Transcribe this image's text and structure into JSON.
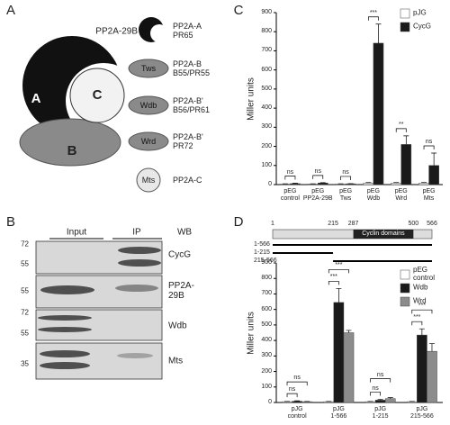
{
  "panels": {
    "letters": [
      "A",
      "B",
      "C",
      "D"
    ]
  },
  "complex": {
    "subunits": [
      "A",
      "C",
      "B"
    ],
    "legend": [
      {
        "name": "PP2A-29B",
        "desc": "PP2A-A\nPR65"
      },
      {
        "name": "Tws",
        "desc": "PP2A-B\nB55/PR55"
      },
      {
        "name": "Wdb",
        "desc": "PP2A-B'\nB56/PR61"
      },
      {
        "name": "Wrd",
        "desc": "PP2A-B'\nPR72"
      },
      {
        "name": "Mts",
        "desc": "PP2A-C"
      }
    ]
  },
  "blot": {
    "columns": [
      "Input",
      "IP",
      "WB"
    ],
    "rows": [
      {
        "markers": [
          72,
          55
        ],
        "label": "CycG"
      },
      {
        "markers": [
          55
        ],
        "label": "PP2A-\n29B"
      },
      {
        "markers": [
          72,
          55
        ],
        "label": "Wdb"
      },
      {
        "markers": [
          35
        ],
        "label": "Mts"
      }
    ]
  },
  "cyclin_map": {
    "ticks": [
      1,
      215,
      287,
      500,
      566
    ],
    "domain": {
      "label": "Cyclin domains",
      "range": [
        287,
        500
      ]
    },
    "constructs": [
      {
        "label": "1-566",
        "range": [
          1,
          566
        ]
      },
      {
        "label": "1-215",
        "range": [
          1,
          215
        ]
      },
      {
        "label": "215-566",
        "range": [
          215,
          566
        ]
      }
    ]
  },
  "chart_data": [
    {
      "type": "bar",
      "ylabel": "Miller units",
      "categories": [
        "pEG\ncontrol",
        "pEG\nPP2A-29B",
        "pEG\nTws",
        "pEG\nWdb",
        "pEG\nWrd",
        "pEG\nMts"
      ],
      "series": [
        {
          "name": "pJG",
          "color": "#ffffff",
          "values": [
            3,
            3,
            3,
            8,
            8,
            8
          ],
          "errors": [
            1,
            1,
            1,
            3,
            3,
            3
          ]
        },
        {
          "name": "CycG",
          "color": "#1a1a1a",
          "values": [
            5,
            8,
            4,
            740,
            210,
            100
          ],
          "errors": [
            2,
            2,
            1,
            100,
            45,
            65
          ]
        }
      ],
      "significance": [
        [
          "ns"
        ],
        [
          "ns"
        ],
        [
          "ns"
        ],
        [
          "***"
        ],
        [
          "**"
        ],
        [
          "ns"
        ]
      ],
      "ylim": [
        0,
        900
      ],
      "yticks": [
        0,
        100,
        200,
        300,
        400,
        500,
        600,
        700,
        800,
        900
      ],
      "legend": "upper right"
    },
    {
      "type": "bar",
      "ylabel": "Miller units",
      "categories": [
        "pJG\ncontrol",
        "pJG\n1-566",
        "pJG\n1-215",
        "pJG\n215-566"
      ],
      "series": [
        {
          "name": "pEG\ncontrol",
          "color": "#ffffff",
          "values": [
            5,
            5,
            5,
            5
          ],
          "errors": [
            2,
            2,
            2,
            2
          ]
        },
        {
          "name": "Wdb",
          "color": "#1a1a1a",
          "values": [
            8,
            645,
            15,
            435
          ],
          "errors": [
            3,
            90,
            5,
            40
          ]
        },
        {
          "name": "Wrd",
          "color": "#8c8c8c",
          "values": [
            5,
            450,
            25,
            330
          ],
          "errors": [
            2,
            15,
            6,
            50
          ]
        }
      ],
      "significance": [
        [
          "ns",
          "ns"
        ],
        [
          "***",
          "***"
        ],
        [
          "ns",
          "ns"
        ],
        [
          "***",
          "***"
        ]
      ],
      "ylim": [
        0,
        900
      ],
      "yticks": [
        0,
        100,
        200,
        300,
        400,
        500,
        600,
        700,
        800,
        900
      ],
      "legend": "upper right"
    }
  ]
}
